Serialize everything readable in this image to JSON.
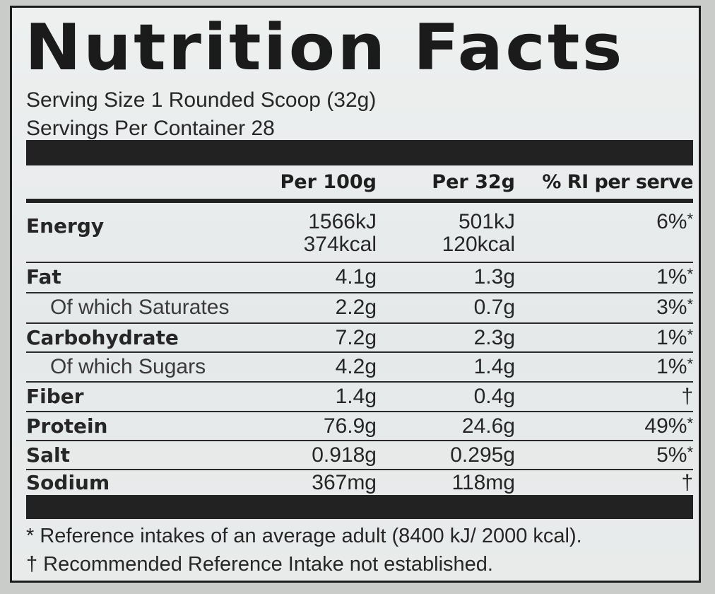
{
  "title": "Nutrition Facts",
  "serving": {
    "size": "Serving Size 1 Rounded Scoop (32g)",
    "per_container": "Servings Per Container 28"
  },
  "columns": [
    "Per 100g",
    "Per 32g",
    "% RI per serve"
  ],
  "rows": [
    {
      "label": "Energy",
      "style": "bold",
      "per100": "1566kJ",
      "per100_b": "374kcal",
      "per32": "501kJ",
      "per32_b": "120kcal",
      "ri": "6%",
      "ri_mark": "*"
    },
    {
      "label": "Fat",
      "style": "bold",
      "per100": "4.1g",
      "per32": "1.3g",
      "ri": "1%",
      "ri_mark": "*"
    },
    {
      "label": "Of which Saturates",
      "style": "sub",
      "per100": "2.2g",
      "per32": "0.7g",
      "ri": "3%",
      "ri_mark": "*"
    },
    {
      "label": "Carbohydrate",
      "style": "bold",
      "per100": "7.2g",
      "per32": "2.3g",
      "ri": "1%",
      "ri_mark": "*"
    },
    {
      "label": "Of which Sugars",
      "style": "sub",
      "per100": "4.2g",
      "per32": "1.4g",
      "ri": "1%",
      "ri_mark": "*"
    },
    {
      "label": "Fiber",
      "style": "bold",
      "per100": "1.4g",
      "per32": "0.4g",
      "ri": "†",
      "ri_mark": ""
    },
    {
      "label": "Protein",
      "style": "bold",
      "per100": "76.9g",
      "per32": "24.6g",
      "ri": "49%",
      "ri_mark": "*"
    },
    {
      "label": "Salt",
      "style": "bold",
      "per100": "0.918g",
      "per32": "0.295g",
      "ri": "5%",
      "ri_mark": "*"
    },
    {
      "label": "Sodium",
      "style": "bold",
      "per100": "367mg",
      "per32": "118mg",
      "ri": "†",
      "ri_mark": ""
    }
  ],
  "footnotes": [
    "* Reference intakes of an average adult (8400 kJ/ 2000 kcal).",
    "† Recommended Reference Intake not established."
  ]
}
